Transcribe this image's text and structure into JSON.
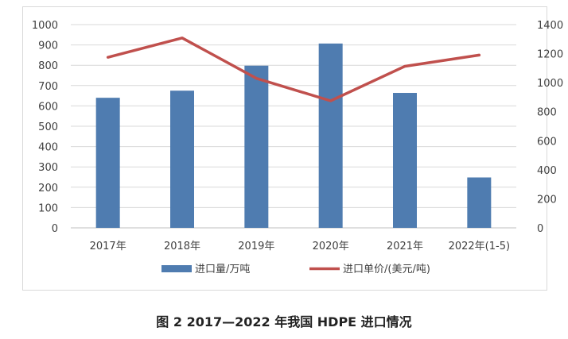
{
  "caption": "图 2  2017—2022 年我国 HDPE 进口情况",
  "chart_data": {
    "type": "bar+line",
    "categories": [
      "2017年",
      "2018年",
      "2019年",
      "2020年",
      "2021年",
      "2022年(1-5)"
    ],
    "series": [
      {
        "name": "进口量/万吨",
        "type": "bar",
        "axis": "left",
        "color": "#4f7cb0",
        "values": [
          640,
          675,
          798,
          907,
          664,
          248
        ]
      },
      {
        "name": "进口单价/(美元/吨)",
        "type": "line",
        "axis": "right",
        "color": "#c0504d",
        "values": [
          1175,
          1308,
          1030,
          875,
          1113,
          1190
        ]
      }
    ],
    "y_left": {
      "min": 0,
      "max": 1000,
      "ticks": [
        "0",
        "100",
        "200",
        "300",
        "400",
        "500",
        "600",
        "700",
        "800",
        "900",
        "1000"
      ]
    },
    "y_right": {
      "min": 0,
      "max": 1400,
      "ticks": [
        "0",
        "200",
        "400",
        "600",
        "800",
        "1000",
        "1200",
        "1400"
      ]
    },
    "grid": true,
    "legend": "bottom"
  }
}
